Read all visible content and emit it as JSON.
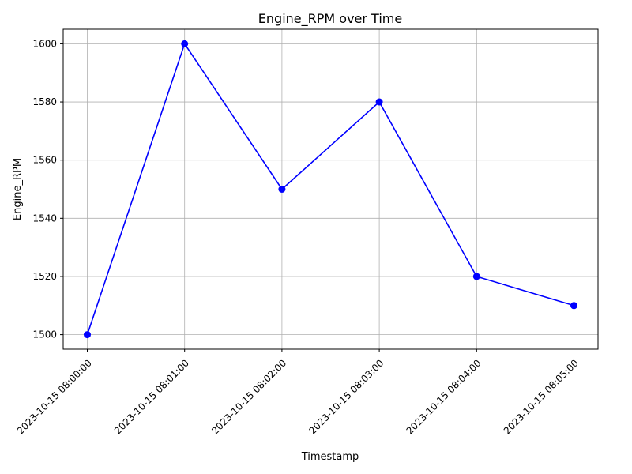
{
  "chart_data": {
    "type": "line",
    "title": "Engine_RPM over Time",
    "xlabel": "Timestamp",
    "ylabel": "Engine_RPM",
    "x": [
      "2023-10-15 08:00:00",
      "2023-10-15 08:01:00",
      "2023-10-15 08:02:00",
      "2023-10-15 08:03:00",
      "2023-10-15 08:04:00",
      "2023-10-15 08:05:00"
    ],
    "series": [
      {
        "values": [
          1500,
          1600,
          1550,
          1580,
          1520,
          1510
        ],
        "color": "#0000ff",
        "marker": "circle"
      }
    ],
    "yticks": [
      1500,
      1520,
      1540,
      1560,
      1580,
      1600
    ],
    "ylim": [
      1495,
      1605
    ],
    "grid": true,
    "xtick_rotation": "45 degrees"
  }
}
